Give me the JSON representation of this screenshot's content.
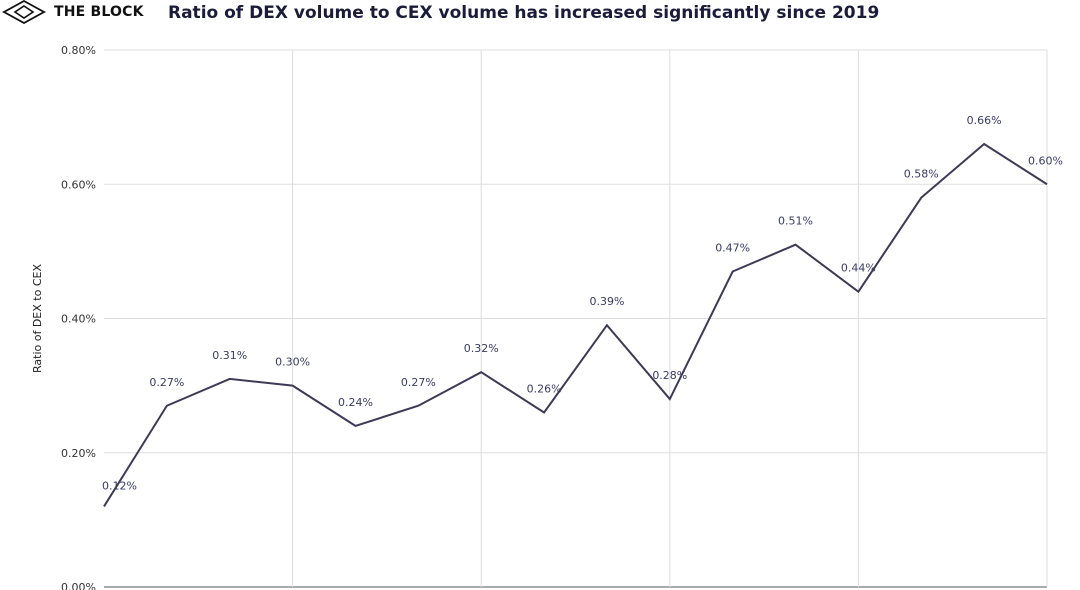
{
  "header": {
    "brand": "THE BLOCK",
    "brand_icon": "cube-logo-icon",
    "title": "Ratio of DEX volume to CEX volume has increased significantly since 2019"
  },
  "colors": {
    "line": "#3d3a55",
    "grid": "#dddddd",
    "data_label": "#3a3a66",
    "title": "#1b1b3a"
  },
  "chart_data": {
    "type": "line",
    "title": "Ratio of DEX volume to CEX volume has increased significantly since 2019",
    "xlabel": "",
    "ylabel": "Ratio of DEX to CEX",
    "ylim": [
      0,
      0.8
    ],
    "yticks": [
      "0.00%",
      "0.20%",
      "0.40%",
      "0.60%",
      "0.80%"
    ],
    "grid": true,
    "legend": "none",
    "series": [
      {
        "values": [
          0.12,
          0.27,
          0.31,
          0.3,
          0.24,
          0.27,
          0.32,
          0.26,
          0.39,
          0.28,
          0.47,
          0.51,
          0.44,
          0.58,
          0.66,
          0.6
        ],
        "labels": [
          "0.12%",
          "0.27%",
          "0.31%",
          "0.30%",
          "0.24%",
          "0.27%",
          "0.32%",
          "0.26%",
          "0.39%",
          "0.28%",
          "0.47%",
          "0.51%",
          "0.44%",
          "0.58%",
          "0.66%",
          "0.60%"
        ]
      }
    ]
  }
}
